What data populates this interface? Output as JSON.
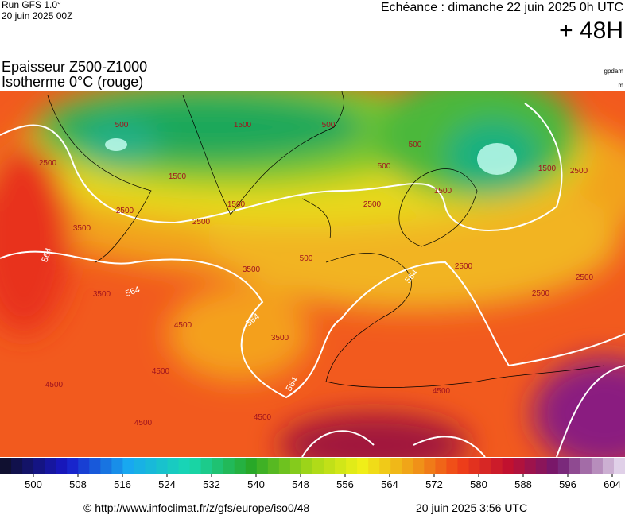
{
  "header": {
    "run": "Run GFS 1.0°",
    "run_date": "20 juin 2025 00Z",
    "valid": "Echéance : dimanche 22 juin 2025 0h UTC",
    "lead": "+ 48H"
  },
  "title": {
    "line1": "Epaisseur Z500-Z1000",
    "line2": "Isotherme 0°C (rouge)",
    "unit1": "gpdam",
    "unit2": "m"
  },
  "thickness_labels": [
    "564",
    "564",
    "564",
    "564",
    "564"
  ],
  "isotherm_labels": [
    "500",
    "500",
    "500",
    "500",
    "500",
    "1500",
    "1500",
    "1500",
    "1500",
    "1500",
    "2500",
    "2500",
    "2500",
    "2500",
    "2500",
    "2500",
    "2500",
    "2500",
    "3500",
    "3500",
    "3500",
    "3500",
    "4500",
    "4500",
    "4500",
    "4500",
    "4500",
    "4500"
  ],
  "colorbar": {
    "ticks": [
      500,
      508,
      516,
      524,
      532,
      540,
      548,
      556,
      564,
      572,
      580,
      588,
      596,
      604
    ]
  },
  "footer": {
    "url": "© http://www.infoclimat.fr/z/gfs/europe/iso0/48",
    "date": "20 juin 2025  3:56 UTC"
  }
}
